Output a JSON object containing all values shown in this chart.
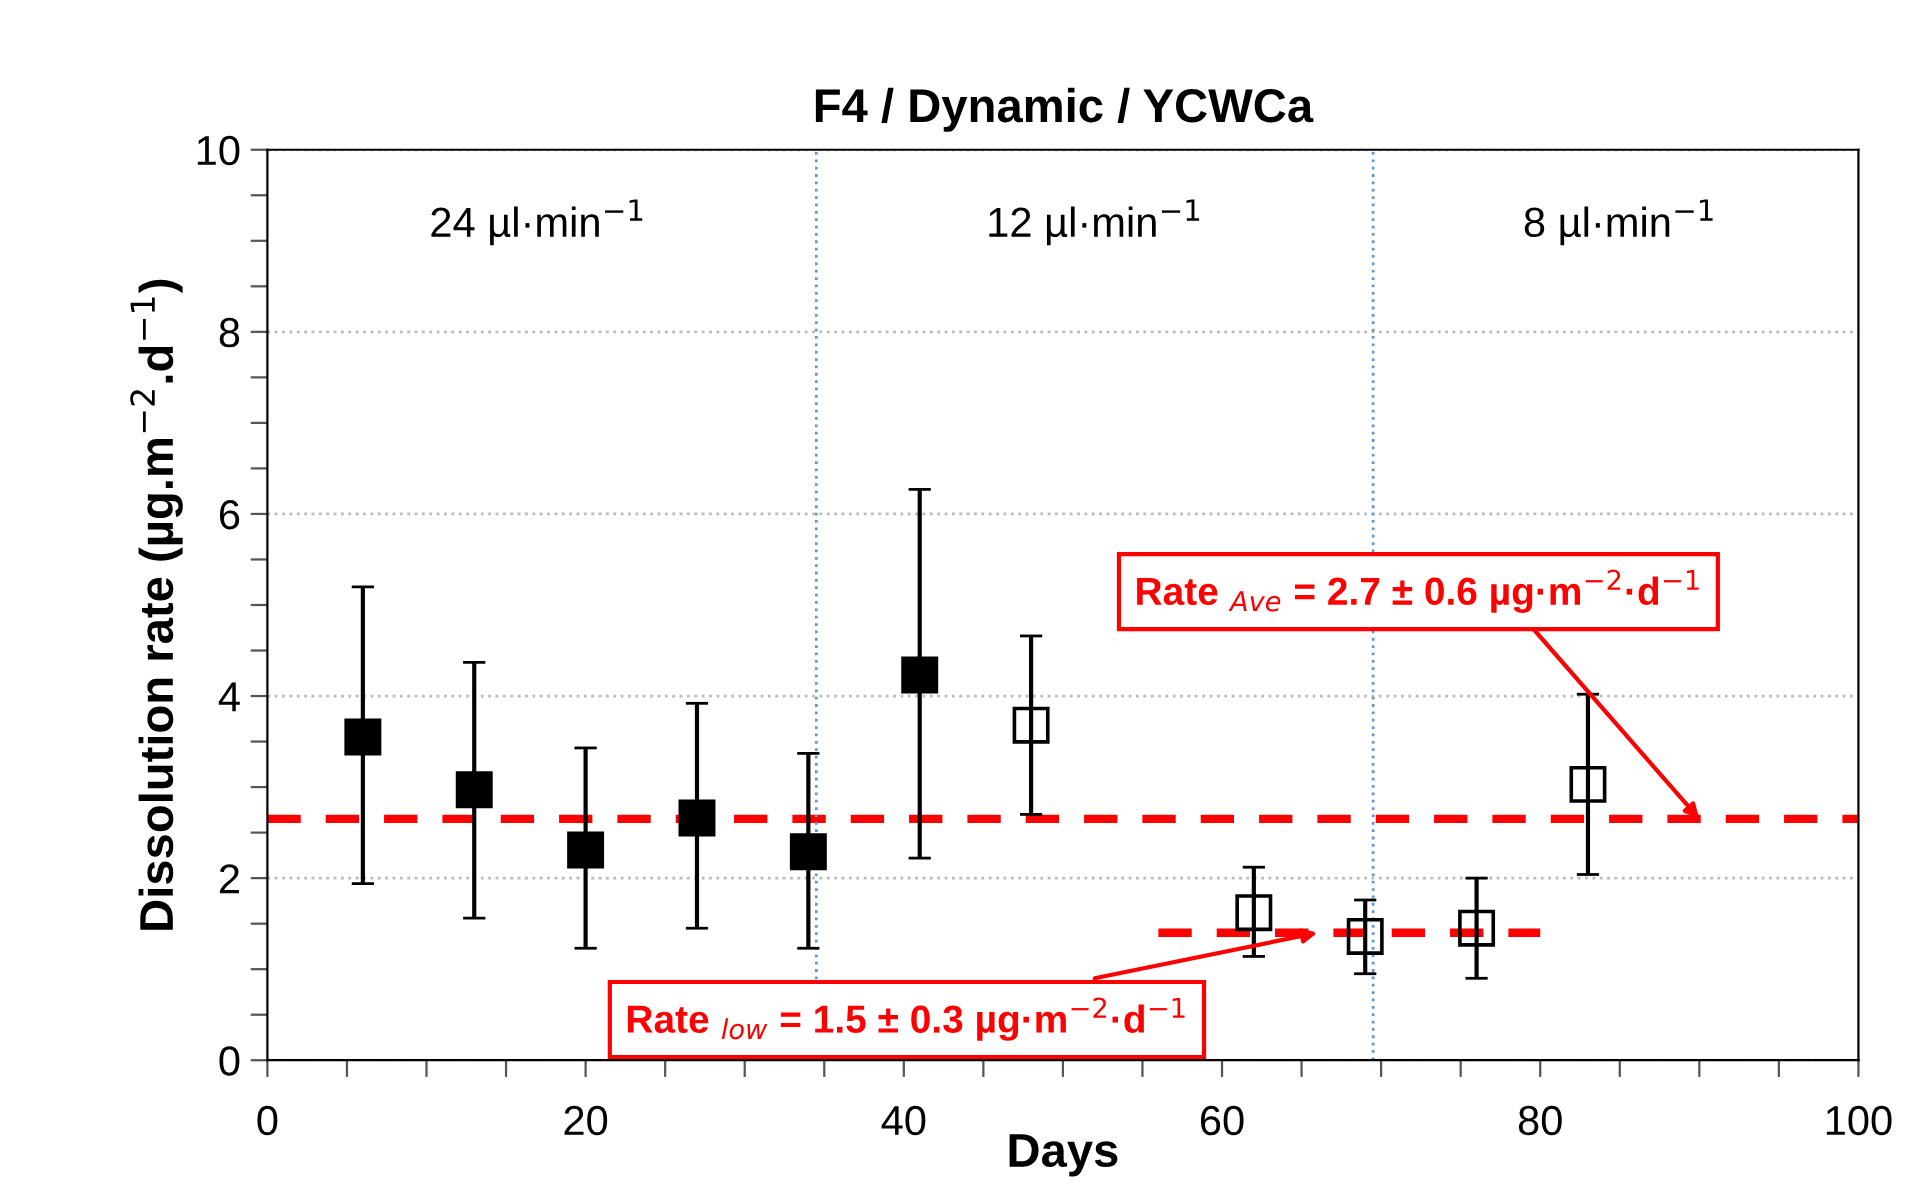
{
  "chart_data": {
    "type": "scatter",
    "title": "F4 / Dynamic / YCWCa",
    "xlabel": "Days",
    "ylabel": "Dissolution rate (µg.m$^{−2}$.d$^{−1}$)",
    "xlim": [
      0,
      100
    ],
    "ylim": [
      0,
      10
    ],
    "xticks": [
      0,
      {
        "value": 5,
        "label": null
      },
      {
        "value": 10,
        "label": null
      },
      {
        "value": 15,
        "label": null
      },
      20,
      {
        "value": 25,
        "label": null
      },
      {
        "value": 30,
        "label": null
      },
      {
        "value": 35,
        "label": null
      },
      40,
      {
        "value": 45,
        "label": null
      },
      {
        "value": 50,
        "label": null
      },
      {
        "value": 55,
        "label": null
      },
      60,
      {
        "value": 65,
        "label": null
      },
      {
        "value": 70,
        "label": null
      },
      {
        "value": 75,
        "label": null
      },
      80,
      {
        "value": 85,
        "label": null
      },
      {
        "value": 90,
        "label": null
      },
      {
        "value": 95,
        "label": null
      },
      100
    ],
    "yticks": [
      0,
      {
        "value": 0.5,
        "label": null
      },
      {
        "value": 1,
        "label": null
      },
      {
        "value": 1.5,
        "label": null
      },
      2,
      {
        "value": 2.5,
        "label": null
      },
      {
        "value": 3,
        "label": null
      },
      {
        "value": 3.5,
        "label": null
      },
      4,
      {
        "value": 4.5,
        "label": null
      },
      {
        "value": 5,
        "label": null
      },
      {
        "value": 5.5,
        "label": null
      },
      6,
      {
        "value": 6.5,
        "label": null
      },
      {
        "value": 7,
        "label": null
      },
      {
        "value": 7.5,
        "label": null
      },
      8,
      {
        "value": 8.5,
        "label": null
      },
      {
        "value": 9,
        "label": null
      },
      {
        "value": 9.5,
        "label": null
      },
      10
    ],
    "grid": "y",
    "marker": "square",
    "legend": false,
    "series": [
      {
        "color": "#000000",
        "x": [
          6,
          13,
          20,
          27,
          34
        ],
        "values": [
          3.55,
          2.97,
          2.31,
          2.66,
          2.29
        ],
        "errors": [
          [
            1.94,
            5.2
          ],
          [
            1.56,
            4.37
          ],
          [
            1.23,
            3.43
          ],
          [
            1.45,
            3.92
          ],
          [
            1.23,
            3.37
          ]
        ]
      },
      {
        "color": "#000000",
        "x": [
          41
        ],
        "values": [
          4.23
        ],
        "errors": [
          [
            2.22,
            6.27
          ]
        ]
      },
      {
        "color": "#000000",
        "x": [
          48,
          62,
          69,
          76,
          83
        ],
        "values": [
          3.68,
          1.62,
          1.36,
          1.45,
          3.03
        ],
        "errors": [
          [
            2.7,
            4.66
          ],
          [
            1.14,
            2.12
          ],
          [
            0.95,
            1.76
          ],
          [
            0.9,
            2.0
          ],
          [
            2.04,
            4.02
          ]
        ]
      },
      {
        "type": "line",
        "color": "#ff0000",
        "line_style": "dashed",
        "marker": "none",
        "x": [
          56,
          80
        ],
        "values": [
          1.4,
          1.4
        ]
      }
    ],
    "ref_lines": [
      {
        "axis": "y",
        "value": 2.65,
        "color": "#ff0000",
        "line_style": "dashed"
      },
      {
        "axis": "x",
        "value": 34.5,
        "color": "#5b9bd5",
        "line_style": "dotted"
      },
      {
        "axis": "x",
        "value": 69.5,
        "color": "#5b9bd5",
        "line_style": "dotted"
      }
    ],
    "annotations": [
      "24 µl·min$^{−1}$",
      "12 µl·min$^{−1}$",
      "8 µl·min$^{−1}$",
      {
        "text": "Rate $_{Ave}$ = 2.7 ± 0.6 µg·m$^{−2}$·d$^{−1}$",
        "x": 90,
        "y": 2.65
      },
      {
        "text": "Rate $_{low}$ = 1.5 ± 0.3 µg·m$^{−2}$·d$^{−1}$",
        "x": 66,
        "y": 1.4
      }
    ]
  }
}
